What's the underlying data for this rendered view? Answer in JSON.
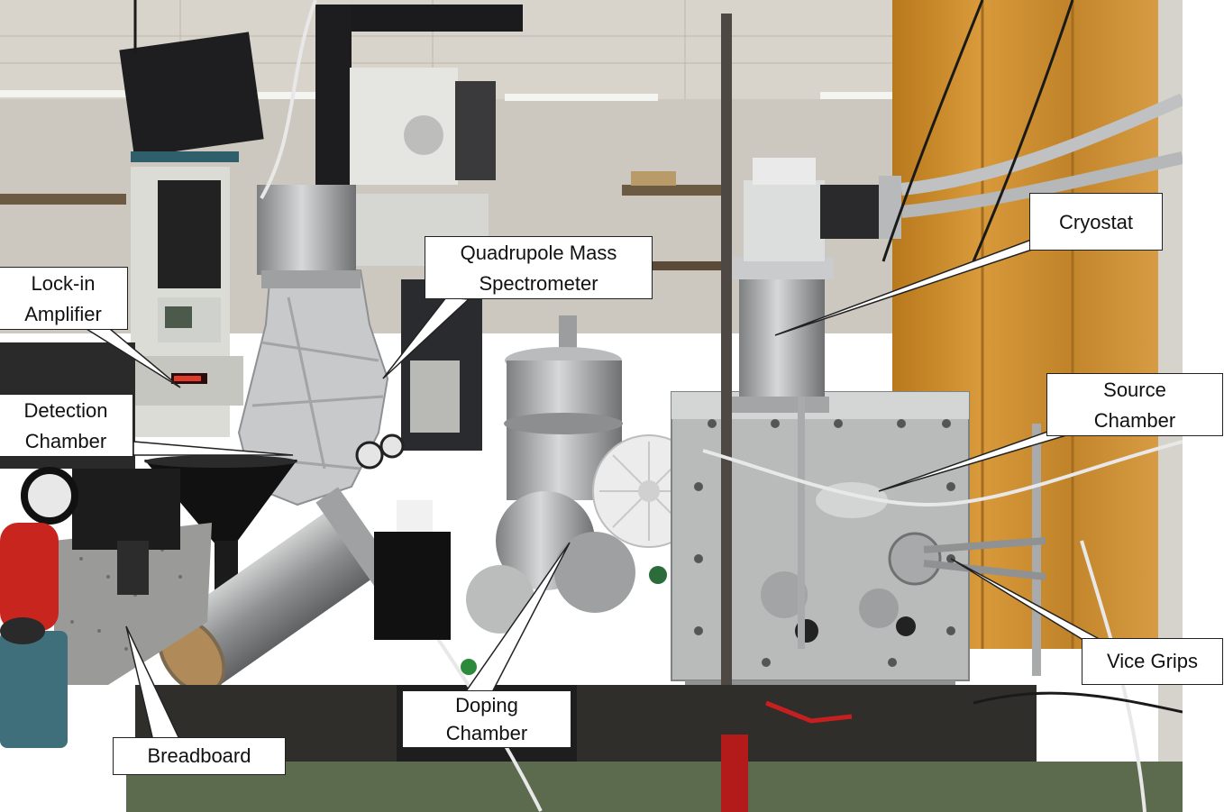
{
  "labels": {
    "cryostat": "Cryostat",
    "qms_line1": "Quadrupole Mass",
    "qms_line2": "Spectrometer",
    "lockin_line1": "Lock-in",
    "lockin_line2": "Amplifier",
    "detection_line1": "Detection",
    "detection_line2": "Chamber",
    "source_line1": "Source",
    "source_line2": "Chamber",
    "vice_grips": "Vice Grips",
    "doping_line1": "Doping",
    "doping_line2": "Chamber",
    "breadboard": "Breadboard"
  },
  "colors": {
    "ceiling": "#d9d4cc",
    "wood_panel": "#c58a2a",
    "steel": "#a9abab",
    "foil": "#c9cbcd",
    "bench": "#3c3b35",
    "fire_extinguisher": "#c8251f"
  }
}
